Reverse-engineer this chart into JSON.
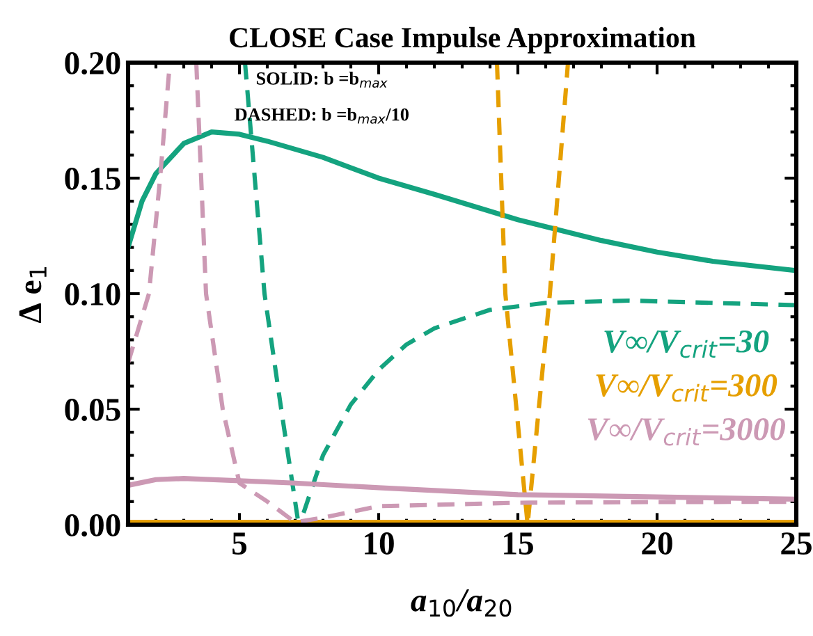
{
  "chart_data": {
    "type": "line",
    "title": "CLOSE Case Impulse Approximation",
    "xlabel": "a$_{10}$/a$_{20}$",
    "ylabel": "Δ e$_{1}$",
    "xlim": [
      1,
      25
    ],
    "ylim": [
      0,
      0.2
    ],
    "xticks": [
      5,
      10,
      15,
      20,
      25
    ],
    "yticks": [
      {
        "value": 0,
        "label": "0.00"
      },
      {
        "value": 0.05,
        "label": "0.05"
      },
      {
        "value": 0.1,
        "label": "0.10"
      },
      {
        "value": 0.15,
        "label": "0.15"
      },
      {
        "value": 0.2,
        "label": "0.20"
      }
    ],
    "grid": false,
    "legend": false,
    "annotations": [
      "SOLID: b =b$_{max}$",
      "DASHED: b =b$_{max}$/10"
    ],
    "series": [
      {
        "name": "V∞/V$_{crit}$=30",
        "color": "#14a37f",
        "line_style": "solid",
        "x": [
          1,
          1.5,
          2,
          3,
          4,
          5,
          6,
          8,
          10,
          12,
          15,
          18,
          20,
          22,
          25
        ],
        "values": [
          0.12,
          0.14,
          0.152,
          0.165,
          0.17,
          0.169,
          0.166,
          0.159,
          0.15,
          0.143,
          0.132,
          0.123,
          0.118,
          0.114,
          0.11
        ]
      },
      {
        "color": "#14a37f",
        "line_style": "dashed",
        "x": [
          5.2,
          5.9,
          6.5,
          7.1,
          7.3,
          8,
          9,
          10,
          11,
          12,
          14,
          16,
          19,
          22,
          25
        ],
        "values": [
          0.2,
          0.1,
          0.05,
          0.002,
          0.005,
          0.03,
          0.052,
          0.067,
          0.078,
          0.085,
          0.093,
          0.096,
          0.097,
          0.096,
          0.095
        ]
      },
      {
        "name": "V∞/V$_{crit}$=300",
        "color": "#e69f00",
        "line_style": "solid",
        "x": [
          1,
          25
        ],
        "values": [
          0.001,
          0.001
        ]
      },
      {
        "color": "#e69f00",
        "line_style": "dashed",
        "x": [
          14.25,
          14.55,
          15.35,
          16.15,
          16.8
        ],
        "values": [
          0.2,
          0.1,
          0.0,
          0.1,
          0.2
        ]
      },
      {
        "name": "V∞/V$_{crit}$=3000",
        "color": "#cc99b4",
        "line_style": "solid",
        "x": [
          1,
          2,
          3,
          5,
          7,
          10,
          15,
          20,
          25
        ],
        "values": [
          0.017,
          0.0195,
          0.02,
          0.019,
          0.018,
          0.016,
          0.013,
          0.012,
          0.011
        ]
      },
      {
        "color": "#cc99b4",
        "line_style": "dashed",
        "x": [
          1,
          1.75,
          2.15,
          2.5,
          3,
          3.45,
          3.8,
          4.4,
          5,
          6,
          7,
          8,
          10,
          15,
          20,
          25
        ],
        "values": [
          0.07,
          0.1,
          0.15,
          0.2,
          null,
          0.2,
          0.1,
          0.05,
          0.018,
          0.01,
          0.001,
          0.003,
          0.008,
          0.0095,
          0.0098,
          0.0099
        ]
      }
    ]
  }
}
